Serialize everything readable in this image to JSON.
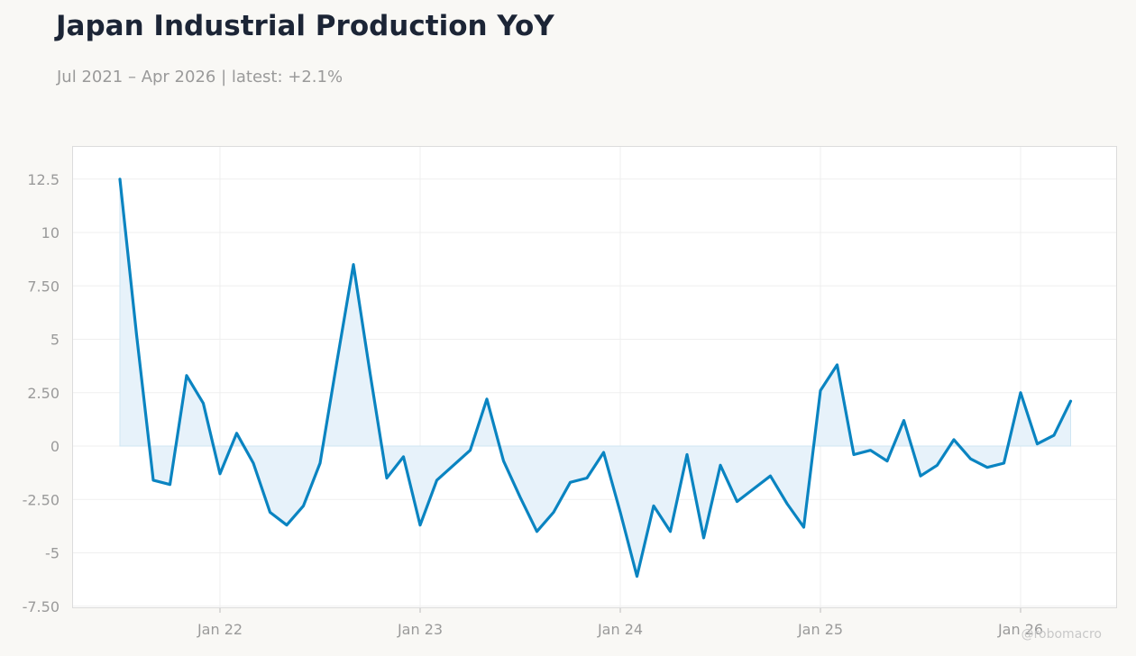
{
  "title": "Japan Industrial Production YoY",
  "subtitle": "Jul 2021 – Apr 2026 | latest: +2.1%",
  "watermark": "@robomacro",
  "colors": {
    "line": "#0a84c1",
    "fill": "#e7f2fa",
    "grid": "#efefef",
    "plot_border": "#dcdcdc",
    "axis_text": "#9a9a9a",
    "title": "#1c2536"
  },
  "chart_data": {
    "type": "area",
    "title": "Japan Industrial Production YoY",
    "subtitle": "Jul 2021 – Apr 2026 | latest: +2.1%",
    "xlabel": "",
    "ylabel": "",
    "x_start": "2021-07",
    "x_ticks": [
      "Jan 22",
      "Jan 23",
      "Jan 24",
      "Jan 25",
      "Jan 26"
    ],
    "y_ticks": [
      "12.5",
      "10",
      "7.50",
      "5",
      "2.50",
      "0",
      "-2.50",
      "-5",
      "-7.50"
    ],
    "ylim": [
      -7.5,
      13.5
    ],
    "grid": true,
    "legend": "none",
    "series": [
      {
        "x": [
          "2021-07",
          "2021-08",
          "2021-09",
          "2021-10",
          "2021-11",
          "2021-12",
          "2022-01",
          "2022-02",
          "2022-03",
          "2022-04",
          "2022-05",
          "2022-06",
          "2022-07",
          "2022-08",
          "2022-09",
          "2022-10",
          "2022-11",
          "2022-12",
          "2023-01",
          "2023-02",
          "2023-03",
          "2023-04",
          "2023-05",
          "2023-06",
          "2023-07",
          "2023-08",
          "2023-09",
          "2023-10",
          "2023-11",
          "2023-12",
          "2024-01",
          "2024-02",
          "2024-03",
          "2024-04",
          "2024-05",
          "2024-06",
          "2024-07",
          "2024-08",
          "2024-09",
          "2024-10",
          "2024-11",
          "2024-12",
          "2025-01",
          "2025-02",
          "2025-03",
          "2025-04",
          "2025-05",
          "2025-06",
          "2025-07",
          "2025-08",
          "2025-09",
          "2025-10",
          "2025-11",
          "2025-12",
          "2026-01",
          "2026-02",
          "2026-03",
          "2026-04"
        ],
        "values": [
          12.5,
          5.2,
          -1.6,
          -1.8,
          3.3,
          2.0,
          -1.3,
          0.6,
          -0.8,
          -3.1,
          -3.7,
          -2.8,
          -0.8,
          3.9,
          8.5,
          3.4,
          -1.5,
          -0.5,
          -3.7,
          -1.6,
          -0.9,
          -0.2,
          2.2,
          -0.7,
          -2.4,
          -4.0,
          -3.1,
          -1.7,
          -1.5,
          -0.3,
          -3.1,
          -6.1,
          -2.8,
          -4.0,
          -0.4,
          -4.3,
          -0.9,
          -2.6,
          -2.0,
          -1.4,
          -2.7,
          -3.8,
          2.6,
          3.8,
          -0.4,
          -0.2,
          -0.7,
          1.2,
          -1.4,
          -0.9,
          0.3,
          -0.6,
          -1.0,
          -0.8,
          2.5,
          0.1,
          0.5,
          2.1
        ]
      }
    ]
  }
}
